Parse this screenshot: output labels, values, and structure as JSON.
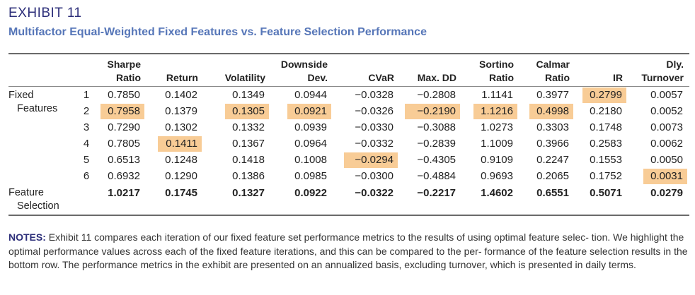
{
  "exhibit": {
    "label": "EXHIBIT 11",
    "title": "Multifactor Equal-Weighted Fixed Features vs. Feature Selection Performance"
  },
  "table": {
    "headers": [
      {
        "line1": "Sharpe",
        "line2": "Ratio"
      },
      {
        "line1": "",
        "line2": "Return"
      },
      {
        "line1": "",
        "line2": "Volatility"
      },
      {
        "line1": "Downside",
        "line2": "Dev."
      },
      {
        "line1": "",
        "line2": "CVaR"
      },
      {
        "line1": "",
        "line2": "Max. DD"
      },
      {
        "line1": "Sortino",
        "line2": "Ratio"
      },
      {
        "line1": "Calmar",
        "line2": "Ratio"
      },
      {
        "line1": "",
        "line2": "IR"
      },
      {
        "line1": "Dly.",
        "line2": "Turnover"
      }
    ],
    "fixed_label_line1": "Fixed",
    "fixed_label_line2": "Features",
    "selection_label_line1": "Feature",
    "selection_label_line2": "Selection",
    "rows": [
      {
        "num": "1",
        "values": [
          "0.7850",
          "0.1402",
          "0.1349",
          "0.0944",
          "−0.0328",
          "−0.2808",
          "1.1141",
          "0.3977",
          "0.2799",
          "0.0057"
        ],
        "highlight": [
          false,
          false,
          false,
          false,
          false,
          false,
          false,
          false,
          true,
          false
        ]
      },
      {
        "num": "2",
        "values": [
          "0.7958",
          "0.1379",
          "0.1305",
          "0.0921",
          "−0.0326",
          "−0.2190",
          "1.1216",
          "0.4998",
          "0.2180",
          "0.0052"
        ],
        "highlight": [
          true,
          false,
          true,
          true,
          false,
          true,
          true,
          true,
          false,
          false
        ]
      },
      {
        "num": "3",
        "values": [
          "0.7290",
          "0.1302",
          "0.1332",
          "0.0939",
          "−0.0330",
          "−0.3088",
          "1.0273",
          "0.3303",
          "0.1748",
          "0.0073"
        ],
        "highlight": [
          false,
          false,
          false,
          false,
          false,
          false,
          false,
          false,
          false,
          false
        ]
      },
      {
        "num": "4",
        "values": [
          "0.7805",
          "0.1411",
          "0.1367",
          "0.0964",
          "−0.0332",
          "−0.2839",
          "1.1009",
          "0.3966",
          "0.2583",
          "0.0062"
        ],
        "highlight": [
          false,
          true,
          false,
          false,
          false,
          false,
          false,
          false,
          false,
          false
        ]
      },
      {
        "num": "5",
        "values": [
          "0.6513",
          "0.1248",
          "0.1418",
          "0.1008",
          "−0.0294",
          "−0.4305",
          "0.9109",
          "0.2247",
          "0.1553",
          "0.0050"
        ],
        "highlight": [
          false,
          false,
          false,
          false,
          true,
          false,
          false,
          false,
          false,
          false
        ]
      },
      {
        "num": "6",
        "values": [
          "0.6932",
          "0.1290",
          "0.1386",
          "0.0985",
          "−0.0300",
          "−0.4884",
          "0.9693",
          "0.2065",
          "0.1752",
          "0.0031"
        ],
        "highlight": [
          false,
          false,
          false,
          false,
          false,
          false,
          false,
          false,
          false,
          true
        ]
      }
    ],
    "selection_values": [
      "1.0217",
      "0.1745",
      "0.1327",
      "0.0922",
      "−0.0322",
      "−0.2217",
      "1.4602",
      "0.6551",
      "0.5071",
      "0.0279"
    ],
    "highlight_color": "#f8cc96"
  },
  "notes": {
    "label": "NOTES:",
    "text": " Exhibit 11 compares each iteration of our fixed feature set performance metrics to the results of using optimal feature selec- tion. We highlight the optimal performance values across each of the fixed feature iterations, and this can be compared to the per- formance of the feature selection results in the bottom row. The performance metrics in the exhibit are presented on an annualized basis, excluding turnover, which is presented in daily terms."
  }
}
